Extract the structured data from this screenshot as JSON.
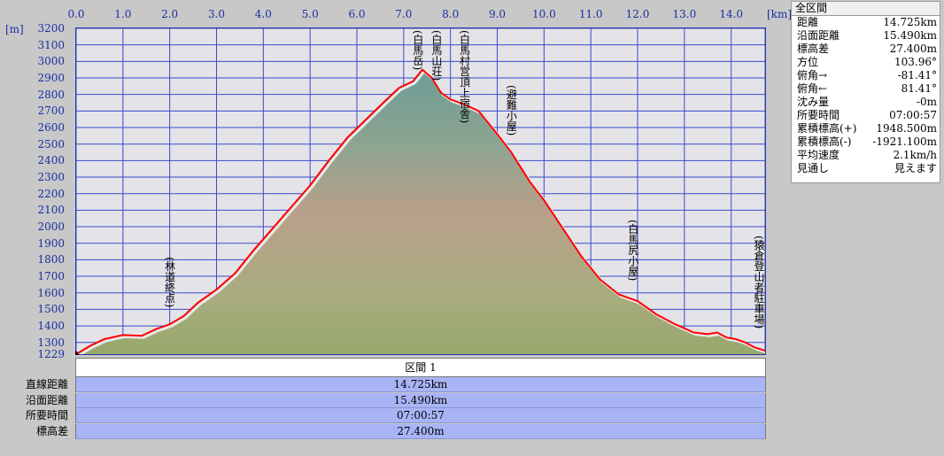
{
  "axis": {
    "x_unit": "[km]",
    "y_unit": "[m]",
    "x_ticks": [
      "0.0",
      "1.0",
      "2.0",
      "3.0",
      "4.0",
      "5.0",
      "6.0",
      "7.0",
      "8.0",
      "9.0",
      "10.0",
      "11.0",
      "12.0",
      "13.0",
      "14.0"
    ],
    "y_ticks": [
      "3200",
      "3100",
      "3000",
      "2900",
      "2800",
      "2700",
      "2600",
      "2500",
      "2400",
      "2300",
      "2200",
      "2100",
      "2000",
      "1900",
      "1800",
      "1700",
      "1600",
      "1500",
      "1400",
      "1300",
      "1229"
    ]
  },
  "chart_data": {
    "type": "area",
    "xlabel": "[km]",
    "ylabel": "[m]",
    "xlim": [
      0,
      14.725
    ],
    "ylim": [
      1229,
      3200
    ],
    "grid": true,
    "series": [
      {
        "color": "#ff0000",
        "x": [
          0,
          0.3,
          0.6,
          1.0,
          1.4,
          1.7,
          2.0,
          2.3,
          2.6,
          3.0,
          3.4,
          3.8,
          4.2,
          4.6,
          5.0,
          5.4,
          5.8,
          6.2,
          6.6,
          6.9,
          7.2,
          7.4,
          7.6,
          7.8,
          8.0,
          8.3,
          8.6,
          9.0,
          9.3,
          9.7,
          10.0,
          10.4,
          10.8,
          11.2,
          11.6,
          12.0,
          12.4,
          12.8,
          13.2,
          13.5,
          13.7,
          13.9,
          14.1,
          14.3,
          14.5,
          14.725
        ],
        "values": [
          1229,
          1280,
          1320,
          1345,
          1340,
          1380,
          1410,
          1460,
          1540,
          1620,
          1720,
          1860,
          1990,
          2120,
          2250,
          2400,
          2540,
          2650,
          2760,
          2840,
          2880,
          2950,
          2900,
          2810,
          2770,
          2740,
          2700,
          2560,
          2450,
          2270,
          2160,
          1990,
          1820,
          1680,
          1590,
          1550,
          1470,
          1410,
          1360,
          1350,
          1360,
          1330,
          1320,
          1300,
          1270,
          1250
        ]
      }
    ],
    "annotations": [
      {
        "text": "(林道終点)",
        "x": 2.0
      },
      {
        "text": "(白馬岳)",
        "x": 7.3
      },
      {
        "text": "(白馬山荘)",
        "x": 7.7
      },
      {
        "text": "(白馬村営頂上宿舎)",
        "x": 8.3
      },
      {
        "text": "(避難小屋)",
        "x": 9.3
      },
      {
        "text": "(白馬尻小屋)",
        "x": 11.9
      },
      {
        "text": "(猿倉登山者駐車場)",
        "x": 14.725
      }
    ]
  },
  "info_panel": {
    "title": "全区間",
    "rows": [
      {
        "label": "距離",
        "value": "14.725km"
      },
      {
        "label": "沿面距離",
        "value": "15.490km"
      },
      {
        "label": "標高差",
        "value": "27.400m"
      },
      {
        "label": "方位",
        "value": "103.96°"
      },
      {
        "label": "俯角→",
        "value": "-81.41°"
      },
      {
        "label": "俯角←",
        "value": "81.41°"
      },
      {
        "label": "沈み量",
        "value": "-0m"
      },
      {
        "label": "所要時間",
        "value": "07:00:57"
      },
      {
        "label": "累積標高(+)",
        "value": "1948.500m"
      },
      {
        "label": "累積標高(-)",
        "value": "-1921.100m"
      },
      {
        "label": "平均速度",
        "value": "2.1km/h"
      },
      {
        "label": "見通し",
        "value": "見えます"
      }
    ]
  },
  "segment_table": {
    "header": "区間 1",
    "rows": [
      {
        "label": "直線距離",
        "value": "14.725km"
      },
      {
        "label": "沿面距離",
        "value": "15.490km"
      },
      {
        "label": "所要時間",
        "value": "07:00:57"
      },
      {
        "label": "標高差",
        "value": "27.400m"
      }
    ]
  },
  "colors": {
    "profile_line": "#ff0000",
    "grid": "#3a4acc",
    "plot_bg": "#e4e4e8",
    "table_value_bg": "#a8b4f6"
  }
}
